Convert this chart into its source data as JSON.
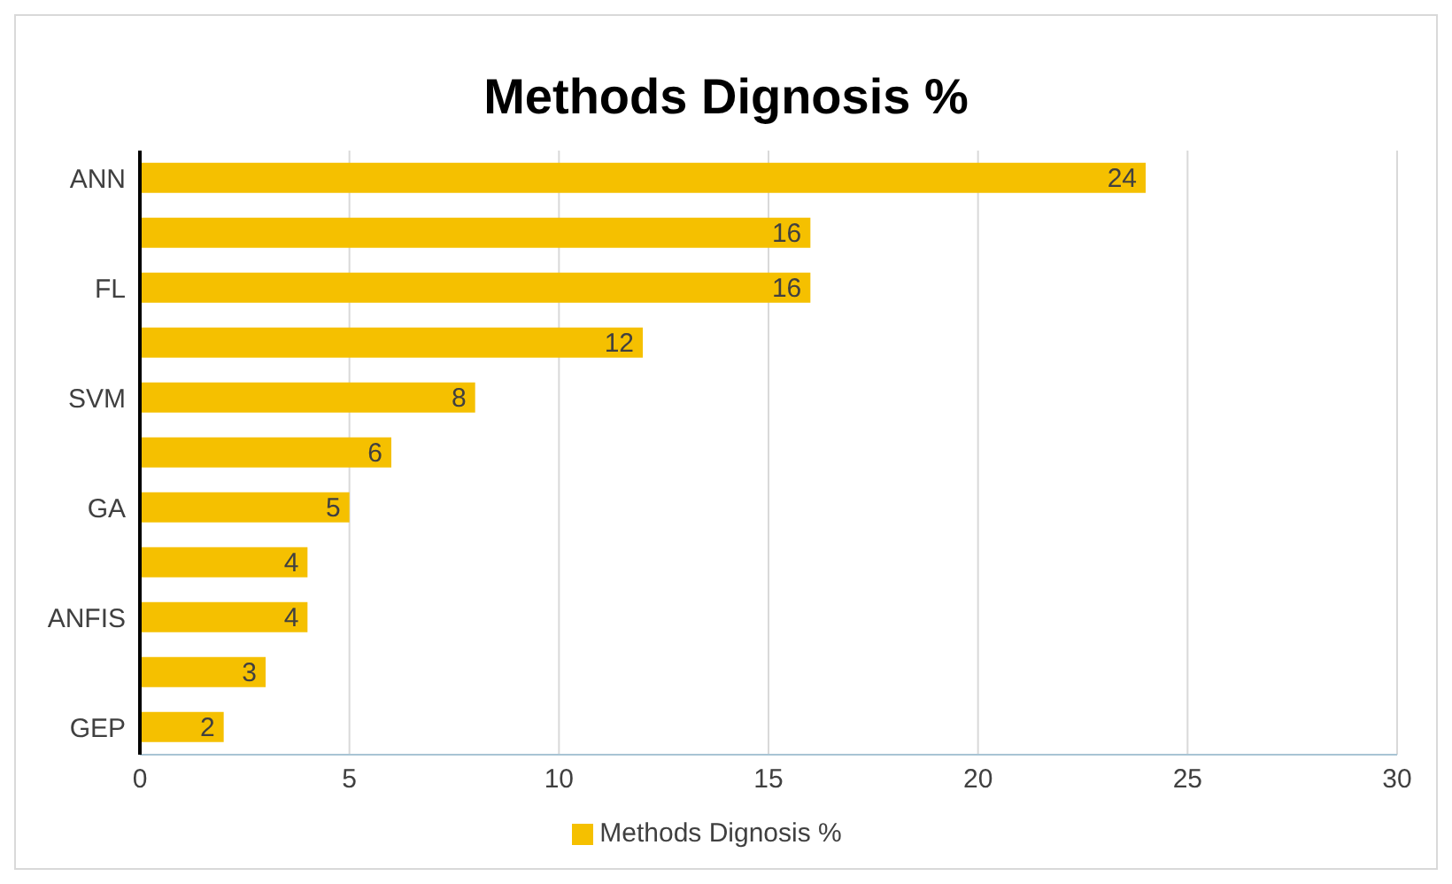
{
  "chart_data": {
    "type": "bar",
    "orientation": "horizontal",
    "title": "Methods Dignosis %",
    "categories": [
      "ANN",
      null,
      "FL",
      null,
      "SVM",
      null,
      "GA",
      null,
      "ANFIS",
      null,
      "GEP"
    ],
    "series": [
      {
        "name": "Methods Dignosis %",
        "color": "#f5c000",
        "values": [
          24,
          16,
          16,
          12,
          8,
          6,
          5,
          4,
          4,
          3,
          2
        ]
      }
    ],
    "xlim": [
      0,
      30
    ],
    "xticks": [
      0,
      5,
      10,
      15,
      20,
      25,
      30
    ],
    "grid": "x",
    "legend": "bottom",
    "data_labels": true
  }
}
